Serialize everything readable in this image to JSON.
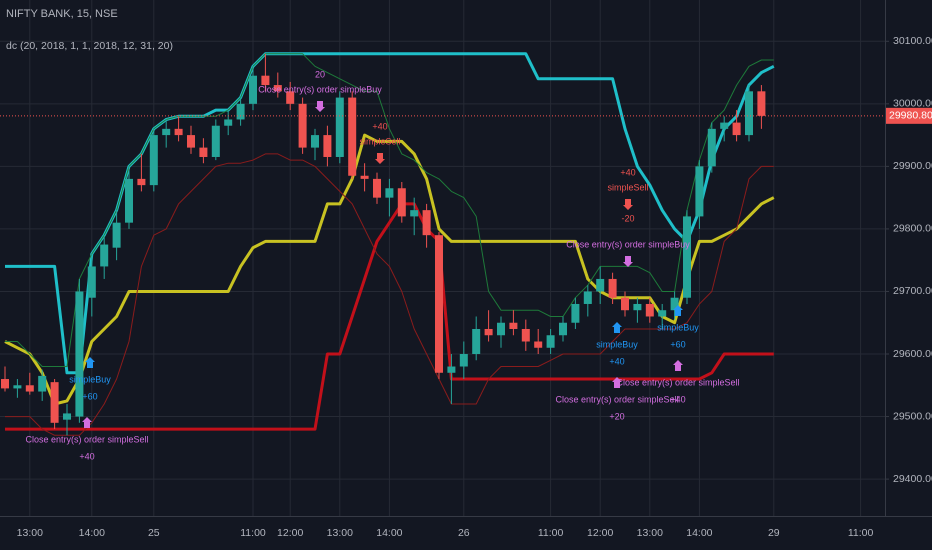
{
  "chart_data": {
    "type": "candlestick",
    "title": "NIFTY BANK, 15, NSE",
    "subtitle": "dc (20, 2018, 1, 1, 2018, 12, 31, 20)",
    "categories": [
      null,
      null,
      "13:00",
      null,
      null,
      null,
      null,
      "14:00",
      null,
      null,
      null,
      null,
      "25",
      null,
      null,
      null,
      null,
      null,
      null,
      null,
      "11:00",
      null,
      null,
      "12:00",
      null,
      null,
      null,
      "13:00",
      null,
      null,
      null,
      "14:00",
      null,
      null,
      null,
      null,
      null,
      "26",
      null,
      null,
      null,
      null,
      null,
      null,
      "11:00",
      null,
      null,
      null,
      "12:00",
      null,
      null,
      null,
      "13:00",
      null,
      null,
      null,
      "14:00",
      null,
      null,
      null,
      null,
      null,
      "29",
      null,
      null,
      null,
      null,
      null,
      null,
      "11:00"
    ],
    "open": [
      29560,
      29545,
      29550,
      29540,
      29555,
      29495,
      29500,
      29690,
      29740,
      29770,
      29810,
      29880,
      29870,
      29950,
      29960,
      29950,
      29930,
      29915,
      29965,
      29975,
      30000,
      30045,
      30030,
      30020,
      30000,
      29930,
      29950,
      29915,
      30010,
      29885,
      29880,
      29850,
      29865,
      29820,
      29830,
      29790,
      29570,
      29580,
      29600,
      29640,
      29630,
      29650,
      29640,
      29620,
      29610,
      29630,
      29650,
      29680,
      29700,
      29720,
      29690,
      29670,
      29680,
      29660,
      29670,
      29690,
      29820,
      29900,
      29960,
      29970,
      29950,
      30020,
      null,
      null,
      null,
      null,
      null,
      null,
      null,
      null
    ],
    "high": [
      29580,
      29560,
      29570,
      29575,
      29560,
      29520,
      29720,
      29760,
      29790,
      29830,
      29900,
      29920,
      29960,
      29975,
      29980,
      29965,
      29945,
      29975,
      29990,
      30010,
      30060,
      30080,
      30050,
      30035,
      30010,
      29960,
      29965,
      30020,
      30020,
      29905,
      29890,
      29880,
      29875,
      29850,
      29840,
      29795,
      29600,
      29620,
      29660,
      29670,
      29660,
      29670,
      29655,
      29640,
      29640,
      29660,
      29690,
      29710,
      29740,
      29730,
      29700,
      29690,
      29690,
      29680,
      29700,
      29830,
      29910,
      29970,
      29980,
      29990,
      30030,
      30030,
      null,
      null,
      null,
      null,
      null,
      null,
      null,
      null
    ],
    "low": [
      29540,
      29530,
      29535,
      29525,
      29480,
      29470,
      29490,
      29660,
      29720,
      29750,
      29800,
      29860,
      29860,
      29930,
      29940,
      29920,
      29905,
      29910,
      29950,
      29965,
      29990,
      30020,
      30010,
      29990,
      29920,
      29910,
      29900,
      29905,
      29880,
      29860,
      29840,
      29820,
      29810,
      29790,
      29770,
      29560,
      29520,
      29560,
      29590,
      29620,
      29610,
      29630,
      29605,
      29600,
      29600,
      29620,
      29640,
      29660,
      29680,
      29680,
      29660,
      29650,
      29650,
      29640,
      29655,
      29680,
      29800,
      29890,
      29940,
      29940,
      29940,
      29960,
      null,
      null,
      null,
      null,
      null,
      null,
      null,
      null
    ],
    "close": [
      29545,
      29550,
      29540,
      29565,
      29490,
      29505,
      29700,
      29740,
      29775,
      29810,
      29880,
      29870,
      29950,
      29960,
      29950,
      29930,
      29915,
      29965,
      29975,
      30000,
      30045,
      30030,
      30020,
      30000,
      29930,
      29950,
      29915,
      30010,
      29885,
      29880,
      29850,
      29865,
      29820,
      29830,
      29790,
      29570,
      29580,
      29600,
      29640,
      29630,
      29650,
      29640,
      29620,
      29610,
      29630,
      29650,
      29680,
      29700,
      29720,
      29690,
      29670,
      29680,
      29660,
      29670,
      29690,
      29820,
      29900,
      29960,
      29970,
      29950,
      30020,
      29980.8,
      null,
      null,
      null,
      null,
      null,
      null,
      null,
      null
    ],
    "up_color": "#26a69a",
    "down_color": "#ef5350",
    "last_price_label": "29980.80",
    "series": [
      {
        "color": "#1fbfc9",
        "line_width": 3,
        "values": [
          29740,
          29740,
          29740,
          29740,
          29740,
          29570,
          29570,
          29760,
          29790,
          29830,
          29900,
          29920,
          29960,
          29975,
          29980,
          29980,
          29980,
          29990,
          29990,
          30010,
          30060,
          30080,
          30080,
          30080,
          30080,
          30080,
          30080,
          30080,
          30080,
          30080,
          30080,
          30080,
          30080,
          30080,
          30080,
          30080,
          30080,
          30080,
          30080,
          30080,
          30080,
          30080,
          30080,
          30040,
          30040,
          30040,
          30040,
          30040,
          30040,
          30040,
          29960,
          29900,
          29870,
          29830,
          29800,
          29780,
          29830,
          29910,
          29960,
          29980,
          30030,
          30050,
          30060,
          null,
          null,
          null,
          null,
          null,
          null,
          null
        ]
      },
      {
        "color": "#c2101a",
        "line_width": 3,
        "values": [
          29480,
          29480,
          29480,
          29480,
          29480,
          29480,
          29480,
          29480,
          29480,
          29480,
          29480,
          29480,
          29480,
          29480,
          29480,
          29480,
          29480,
          29480,
          29480,
          29480,
          29480,
          29480,
          29480,
          29480,
          29480,
          29480,
          29600,
          29600,
          29660,
          29720,
          29780,
          29810,
          29840,
          29840,
          29800,
          29780,
          29560,
          29560,
          29560,
          29560,
          29560,
          29560,
          29560,
          29560,
          29560,
          29560,
          29560,
          29560,
          29560,
          29560,
          29560,
          29560,
          29560,
          29560,
          29560,
          29560,
          29560,
          29570,
          29600,
          29600,
          29600,
          29600,
          29600,
          null,
          null,
          null,
          null,
          null,
          null,
          null
        ]
      },
      {
        "color": "#c8c222",
        "line_width": 3,
        "values": [
          29620,
          29610,
          29600,
          29570,
          29520,
          29525,
          29560,
          29620,
          29640,
          29660,
          29700,
          29700,
          29700,
          29700,
          29700,
          29700,
          29700,
          29700,
          29700,
          29740,
          29770,
          29780,
          29780,
          29780,
          29780,
          29780,
          29840,
          29840,
          29880,
          29950,
          29940,
          29940,
          29940,
          29920,
          29880,
          29800,
          29780,
          29780,
          29780,
          29780,
          29780,
          29780,
          29780,
          29780,
          29780,
          29780,
          29780,
          29720,
          29700,
          29690,
          29690,
          29690,
          29690,
          29660,
          29650,
          29720,
          29780,
          29780,
          29790,
          29800,
          29820,
          29840,
          29850,
          null,
          null,
          null,
          null,
          null,
          null,
          null
        ]
      },
      {
        "color": "#1e7a3a",
        "line_width": 1,
        "values": [
          29620,
          29620,
          29600,
          29580,
          29580,
          29580,
          29720,
          29760,
          29790,
          29830,
          29900,
          29920,
          29960,
          29975,
          29980,
          29980,
          29980,
          29980,
          29990,
          30010,
          30060,
          30080,
          30080,
          30080,
          30080,
          30060,
          30050,
          30040,
          30030,
          30020,
          30020,
          29960,
          29920,
          29910,
          29890,
          29880,
          29860,
          29850,
          29820,
          29700,
          29670,
          29670,
          29670,
          29670,
          29660,
          29660,
          29690,
          29710,
          29740,
          29740,
          29740,
          29740,
          29730,
          29700,
          29700,
          29830,
          29910,
          29970,
          29990,
          30030,
          30060,
          30070,
          30070,
          null,
          null,
          null,
          null,
          null,
          null,
          null
        ]
      },
      {
        "color": "#8a1c1c",
        "line_width": 1,
        "values": [
          29500,
          29500,
          29500,
          29480,
          29470,
          29470,
          29470,
          29490,
          29520,
          29560,
          29620,
          29740,
          29790,
          29800,
          29840,
          29860,
          29880,
          29900,
          29905,
          29905,
          29910,
          29920,
          29920,
          29910,
          29910,
          29900,
          29880,
          29860,
          29840,
          29800,
          29760,
          29740,
          29700,
          29640,
          29600,
          29560,
          29520,
          29520,
          29520,
          29560,
          29580,
          29580,
          29580,
          29580,
          29590,
          29600,
          29600,
          29600,
          29600,
          29620,
          29640,
          29640,
          29640,
          29640,
          29640,
          29650,
          29680,
          29700,
          29780,
          29800,
          29880,
          29900,
          29900,
          null,
          null,
          null,
          null,
          null,
          null,
          null
        ]
      }
    ],
    "ylim": [
      29341,
      30166
    ],
    "yticks": [
      {
        "value": 29400,
        "label": "29400.00"
      },
      {
        "value": 29500,
        "label": "29500.00"
      },
      {
        "value": 29600,
        "label": "29600.00"
      },
      {
        "value": 29700,
        "label": "29700.00"
      },
      {
        "value": 29800,
        "label": "29800.00"
      },
      {
        "value": 29900,
        "label": "29900.00"
      },
      {
        "value": 30000,
        "label": "30000.00"
      },
      {
        "value": 30100,
        "label": "30100.00"
      }
    ],
    "grid": true,
    "annotations": [
      {
        "color": "#d36ee0",
        "direction": "down",
        "above": [
          "20",
          "Close entry(s) order simpleBuy"
        ],
        "below": []
      },
      {
        "color": "#ef5350",
        "direction": "down",
        "above": [
          "+40",
          "simpleSell"
        ],
        "below": []
      },
      {
        "color": "#ef5350",
        "direction": "down",
        "above": [
          "+40",
          "simpleSell"
        ],
        "below": [
          "-20"
        ]
      },
      {
        "color": "#d36ee0",
        "direction": "down",
        "above": [
          "Close entry(s) order simpleBuy"
        ],
        "below": []
      },
      {
        "color": "#2196f3",
        "direction": "up",
        "above": [],
        "below": [
          "simpleBuy",
          "+60"
        ]
      },
      {
        "color": "#d36ee0",
        "direction": "up",
        "above": [],
        "below": [
          "Close entry(s) order simpleSell",
          "+40"
        ]
      },
      {
        "color": "#2196f3",
        "direction": "up",
        "above": [],
        "below": [
          "simpleBuy",
          "+40"
        ]
      },
      {
        "color": "#d36ee0",
        "direction": "up",
        "above": [],
        "below": [
          "Close entry(s) order simpleSell",
          "+20"
        ]
      },
      {
        "color": "#2196f3",
        "direction": "up",
        "above": [],
        "below": [
          "simpleBuy",
          "+60"
        ]
      },
      {
        "color": "#d36ee0",
        "direction": "up",
        "above": [],
        "below": [
          "Close entry(s) order simpleSell",
          "+40"
        ]
      }
    ]
  }
}
